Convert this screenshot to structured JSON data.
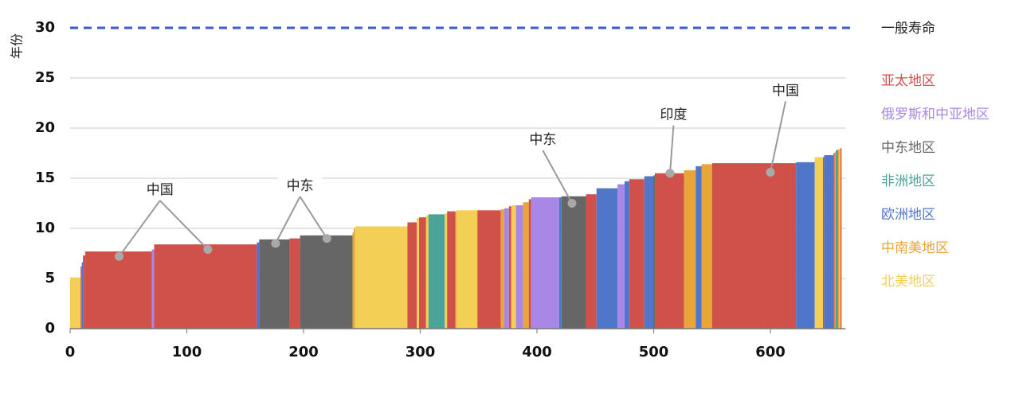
{
  "chart_data": {
    "type": "bar",
    "variant": "variable-width stepped bar",
    "title": "",
    "xlabel": "",
    "ylabel": "年份",
    "xlim": [
      0,
      663
    ],
    "ylim": [
      0,
      30
    ],
    "xticks": [
      0,
      100,
      200,
      300,
      400,
      500,
      600
    ],
    "yticks": [
      0,
      5,
      10,
      15,
      20,
      25,
      30
    ],
    "grid": true,
    "reference_line": {
      "y": 30,
      "label": "一般寿命",
      "color": "#3b5bdb",
      "style": "dashed"
    },
    "legend": {
      "placement": "right",
      "entries": [
        {
          "name": "一般寿命",
          "color": "#222222"
        },
        {
          "name": "亚太地区",
          "color": "#cf514a"
        },
        {
          "name": "俄罗斯和中亚地区",
          "color": "#a887e6"
        },
        {
          "name": "中东地区",
          "color": "#666666"
        },
        {
          "name": "非洲地区",
          "color": "#4aa49a"
        },
        {
          "name": "欧洲地区",
          "color": "#4f76c9"
        },
        {
          "name": "中南美地区",
          "color": "#e8a53a"
        },
        {
          "name": "北美地区",
          "color": "#f3cf55"
        }
      ]
    },
    "bars": [
      {
        "x0": 0,
        "x1": 9,
        "value": 5.1,
        "region": "北美地区"
      },
      {
        "x0": 9,
        "x1": 10,
        "value": 6.2,
        "region": "亚太地区"
      },
      {
        "x0": 10,
        "x1": 11,
        "value": 6.6,
        "region": "欧洲地区"
      },
      {
        "x0": 11,
        "x1": 13,
        "value": 7.3,
        "region": "亚太地区"
      },
      {
        "x0": 13,
        "x1": 70,
        "value": 7.7,
        "region": "亚太地区"
      },
      {
        "x0": 70,
        "x1": 72,
        "value": 7.9,
        "region": "俄罗斯和中亚地区"
      },
      {
        "x0": 72,
        "x1": 160,
        "value": 8.4,
        "region": "亚太地区"
      },
      {
        "x0": 160,
        "x1": 162,
        "value": 8.6,
        "region": "欧洲地区"
      },
      {
        "x0": 162,
        "x1": 188,
        "value": 8.9,
        "region": "中东地区"
      },
      {
        "x0": 188,
        "x1": 197,
        "value": 9.0,
        "region": "亚太地区"
      },
      {
        "x0": 197,
        "x1": 242,
        "value": 9.3,
        "region": "中东地区"
      },
      {
        "x0": 242,
        "x1": 243,
        "value": 9.6,
        "region": "中南美地区"
      },
      {
        "x0": 243,
        "x1": 244,
        "value": 10.0,
        "region": "中南美地区"
      },
      {
        "x0": 244,
        "x1": 289,
        "value": 10.2,
        "region": "北美地区"
      },
      {
        "x0": 289,
        "x1": 297,
        "value": 10.6,
        "region": "亚太地区"
      },
      {
        "x0": 297,
        "x1": 299,
        "value": 11.0,
        "region": "北美地区"
      },
      {
        "x0": 299,
        "x1": 305,
        "value": 11.1,
        "region": "亚太地区"
      },
      {
        "x0": 305,
        "x1": 307,
        "value": 11.3,
        "region": "北美地区"
      },
      {
        "x0": 307,
        "x1": 321,
        "value": 11.4,
        "region": "非洲地区"
      },
      {
        "x0": 321,
        "x1": 323,
        "value": 11.5,
        "region": "北美地区"
      },
      {
        "x0": 323,
        "x1": 330,
        "value": 11.7,
        "region": "亚太地区"
      },
      {
        "x0": 330,
        "x1": 331,
        "value": 11.7,
        "region": "中南美地区"
      },
      {
        "x0": 331,
        "x1": 349,
        "value": 11.8,
        "region": "北美地区"
      },
      {
        "x0": 349,
        "x1": 369,
        "value": 11.8,
        "region": "亚太地区"
      },
      {
        "x0": 369,
        "x1": 372,
        "value": 11.9,
        "region": "中南美地区"
      },
      {
        "x0": 372,
        "x1": 376,
        "value": 12.0,
        "region": "俄罗斯和中亚地区"
      },
      {
        "x0": 376,
        "x1": 378,
        "value": 12.2,
        "region": "亚太地区"
      },
      {
        "x0": 378,
        "x1": 382,
        "value": 12.3,
        "region": "北美地区"
      },
      {
        "x0": 382,
        "x1": 388,
        "value": 12.3,
        "region": "俄罗斯和中亚地区"
      },
      {
        "x0": 388,
        "x1": 393,
        "value": 12.6,
        "region": "中南美地区"
      },
      {
        "x0": 393,
        "x1": 395,
        "value": 12.9,
        "region": "亚太地区"
      },
      {
        "x0": 395,
        "x1": 419,
        "value": 13.1,
        "region": "俄罗斯和中亚地区"
      },
      {
        "x0": 419,
        "x1": 421,
        "value": 13.1,
        "region": "欧洲地区"
      },
      {
        "x0": 421,
        "x1": 442,
        "value": 13.2,
        "region": "中东地区"
      },
      {
        "x0": 442,
        "x1": 451,
        "value": 13.4,
        "region": "亚太地区"
      },
      {
        "x0": 451,
        "x1": 469,
        "value": 14.0,
        "region": "欧洲地区"
      },
      {
        "x0": 469,
        "x1": 475,
        "value": 14.4,
        "region": "俄罗斯和中亚地区"
      },
      {
        "x0": 475,
        "x1": 479,
        "value": 14.7,
        "region": "欧洲地区"
      },
      {
        "x0": 479,
        "x1": 492,
        "value": 14.9,
        "region": "亚太地区"
      },
      {
        "x0": 492,
        "x1": 500,
        "value": 15.2,
        "region": "欧洲地区"
      },
      {
        "x0": 500,
        "x1": 501,
        "value": 15.3,
        "region": "中东地区"
      },
      {
        "x0": 501,
        "x1": 526,
        "value": 15.5,
        "region": "亚太地区"
      },
      {
        "x0": 526,
        "x1": 536,
        "value": 15.8,
        "region": "中南美地区"
      },
      {
        "x0": 536,
        "x1": 541,
        "value": 16.2,
        "region": "欧洲地区"
      },
      {
        "x0": 541,
        "x1": 550,
        "value": 16.4,
        "region": "中南美地区"
      },
      {
        "x0": 550,
        "x1": 622,
        "value": 16.5,
        "region": "亚太地区"
      },
      {
        "x0": 622,
        "x1": 638,
        "value": 16.6,
        "region": "欧洲地区"
      },
      {
        "x0": 638,
        "x1": 645,
        "value": 17.1,
        "region": "北美地区"
      },
      {
        "x0": 645,
        "x1": 646,
        "value": 17.1,
        "region": "亚太地区"
      },
      {
        "x0": 646,
        "x1": 654,
        "value": 17.3,
        "region": "欧洲地区"
      },
      {
        "x0": 654,
        "x1": 655,
        "value": 17.5,
        "region": "亚太地区"
      },
      {
        "x0": 655,
        "x1": 656,
        "value": 17.6,
        "region": "中南美地区"
      },
      {
        "x0": 656,
        "x1": 658,
        "value": 17.8,
        "region": "非洲地区"
      },
      {
        "x0": 658,
        "x1": 659,
        "value": 17.9,
        "region": "中南美地区"
      },
      {
        "x0": 659,
        "x1": 660,
        "value": 17.9,
        "region": "北美地区"
      },
      {
        "x0": 660,
        "x1": 661,
        "value": 18.0,
        "region": "亚太地区"
      }
    ],
    "annotations": [
      {
        "text": "中国",
        "label_at": [
          77,
          13.8
        ],
        "points": [
          [
            42,
            7.2
          ],
          [
            118,
            7.9
          ]
        ]
      },
      {
        "text": "中东",
        "label_at": [
          197,
          14.2
        ],
        "points": [
          [
            176,
            8.5
          ],
          [
            220,
            9.0
          ]
        ]
      },
      {
        "text": "中东",
        "label_at": [
          405,
          18.8
        ],
        "points": [
          [
            430,
            12.5
          ]
        ]
      },
      {
        "text": "印度",
        "label_at": [
          517,
          21.3
        ],
        "points": [
          [
            514,
            15.5
          ]
        ]
      },
      {
        "text": "中国",
        "label_at": [
          613,
          23.7
        ],
        "points": [
          [
            600,
            15.6
          ]
        ]
      }
    ]
  }
}
